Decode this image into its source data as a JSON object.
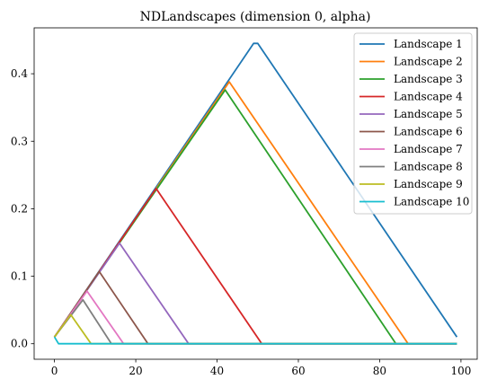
{
  "chart_data": {
    "type": "line",
    "title": "NDLandscapes (dimension 0, alpha)",
    "xlabel": "",
    "ylabel": "",
    "xlim": [
      -5,
      104
    ],
    "ylim": [
      -0.023,
      0.468
    ],
    "xticks": [
      0,
      20,
      40,
      60,
      80,
      100
    ],
    "yticks": [
      0.0,
      0.1,
      0.2,
      0.3,
      0.4
    ],
    "ytick_labels": [
      "0.0",
      "0.1",
      "0.2",
      "0.3",
      "0.4"
    ],
    "grid": false,
    "legend_position": "top-right",
    "series": [
      {
        "name": "Landscape 1",
        "color": "#1f77b4",
        "points": [
          [
            0,
            0.01
          ],
          [
            49,
            0.445
          ],
          [
            50,
            0.445
          ],
          [
            99,
            0.01
          ]
        ]
      },
      {
        "name": "Landscape 2",
        "color": "#ff7f0e",
        "points": [
          [
            0,
            0.01
          ],
          [
            43,
            0.388
          ],
          [
            87,
            0.0
          ],
          [
            99,
            0.0
          ]
        ]
      },
      {
        "name": "Landscape 3",
        "color": "#2ca02c",
        "points": [
          [
            0,
            0.01
          ],
          [
            42,
            0.376
          ],
          [
            84,
            0.0
          ],
          [
            99,
            0.0
          ]
        ]
      },
      {
        "name": "Landscape 4",
        "color": "#d62728",
        "points": [
          [
            0,
            0.01
          ],
          [
            25,
            0.23
          ],
          [
            51,
            0.0
          ],
          [
            99,
            0.0
          ]
        ]
      },
      {
        "name": "Landscape 5",
        "color": "#9467bd",
        "points": [
          [
            0,
            0.01
          ],
          [
            16,
            0.149
          ],
          [
            33,
            0.0
          ],
          [
            99,
            0.0
          ]
        ]
      },
      {
        "name": "Landscape 6",
        "color": "#8c564b",
        "points": [
          [
            0,
            0.01
          ],
          [
            11,
            0.107
          ],
          [
            23,
            0.0
          ],
          [
            99,
            0.0
          ]
        ]
      },
      {
        "name": "Landscape 7",
        "color": "#e377c2",
        "points": [
          [
            0,
            0.01
          ],
          [
            8,
            0.078
          ],
          [
            17,
            0.0
          ],
          [
            99,
            0.0
          ]
        ]
      },
      {
        "name": "Landscape 8",
        "color": "#7f7f7f",
        "points": [
          [
            0,
            0.01
          ],
          [
            7,
            0.065
          ],
          [
            14,
            0.0
          ],
          [
            99,
            0.0
          ]
        ]
      },
      {
        "name": "Landscape 9",
        "color": "#bcbd22",
        "points": [
          [
            0,
            0.01
          ],
          [
            4,
            0.043
          ],
          [
            9,
            0.0
          ],
          [
            99,
            0.0
          ]
        ]
      },
      {
        "name": "Landscape 10",
        "color": "#17becf",
        "points": [
          [
            0,
            0.01
          ],
          [
            1,
            0.0
          ],
          [
            99,
            0.0
          ]
        ]
      }
    ]
  }
}
